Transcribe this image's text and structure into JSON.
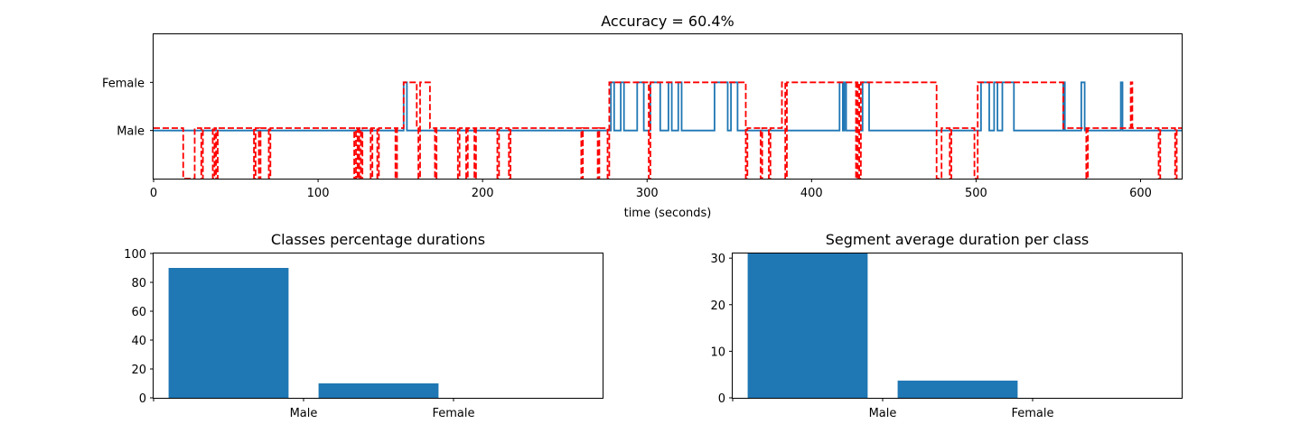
{
  "chart_data": [
    {
      "type": "line",
      "title": "Accuracy = 60.4%",
      "xlabel": "time (seconds)",
      "ylabel": "",
      "xlim": [
        0,
        625
      ],
      "ylim": [
        -1,
        2
      ],
      "x_ticks": [
        0,
        100,
        200,
        300,
        400,
        500,
        600
      ],
      "y_ticks": [
        {
          "value": 0,
          "label": "Male"
        },
        {
          "value": 1,
          "label": "Female"
        }
      ],
      "series": [
        {
          "style": "solid",
          "color": "#1f77b4",
          "segments": [
            [
              0,
              0
            ],
            [
              152,
              0
            ],
            [
              152,
              1
            ],
            [
              154,
              1
            ],
            [
              154,
              0
            ],
            [
              278,
              0
            ],
            [
              278,
              1
            ],
            [
              280,
              1
            ],
            [
              280,
              0
            ],
            [
              284,
              0
            ],
            [
              284,
              1
            ],
            [
              286,
              1
            ],
            [
              286,
              0
            ],
            [
              294,
              0
            ],
            [
              294,
              1
            ],
            [
              298,
              1
            ],
            [
              298,
              0
            ],
            [
              302,
              0
            ],
            [
              302,
              1
            ],
            [
              308,
              1
            ],
            [
              308,
              0
            ],
            [
              313,
              0
            ],
            [
              313,
              1
            ],
            [
              315,
              1
            ],
            [
              315,
              0
            ],
            [
              319,
              0
            ],
            [
              319,
              1
            ],
            [
              321,
              1
            ],
            [
              321,
              0
            ],
            [
              341,
              0
            ],
            [
              341,
              1
            ],
            [
              349,
              1
            ],
            [
              349,
              0
            ],
            [
              351,
              0
            ],
            [
              351,
              1
            ],
            [
              355,
              1
            ],
            [
              355,
              0
            ],
            [
              417,
              0
            ],
            [
              417,
              1
            ],
            [
              419,
              1
            ],
            [
              419,
              0
            ],
            [
              420,
              0
            ],
            [
              420,
              1
            ],
            [
              421,
              1
            ],
            [
              421,
              0
            ],
            [
              431,
              0
            ],
            [
              431,
              1
            ],
            [
              435,
              1
            ],
            [
              435,
              0
            ],
            [
              503,
              0
            ],
            [
              503,
              1
            ],
            [
              508,
              1
            ],
            [
              508,
              0
            ],
            [
              511,
              0
            ],
            [
              511,
              1
            ],
            [
              513,
              1
            ],
            [
              513,
              0
            ],
            [
              516,
              0
            ],
            [
              516,
              1
            ],
            [
              523,
              1
            ],
            [
              523,
              0
            ],
            [
              553,
              0
            ],
            [
              553,
              1
            ],
            [
              554,
              1
            ],
            [
              554,
              0
            ],
            [
              564,
              0
            ],
            [
              564,
              1
            ],
            [
              566,
              1
            ],
            [
              566,
              0
            ],
            [
              588,
              0
            ],
            [
              588,
              1
            ],
            [
              589,
              1
            ],
            [
              589,
              0
            ],
            [
              625,
              0
            ]
          ]
        },
        {
          "style": "dashed",
          "color": "#ff0000",
          "segments": [
            [
              0,
              0.05
            ],
            [
              18,
              0.05
            ],
            [
              18,
              -1
            ],
            [
              25,
              -1
            ],
            [
              25,
              0.05
            ],
            [
              29,
              0.05
            ],
            [
              29,
              -1
            ],
            [
              30,
              -1
            ],
            [
              30,
              0.05
            ],
            [
              36,
              0.05
            ],
            [
              36,
              -1
            ],
            [
              37,
              -1
            ],
            [
              37,
              0.05
            ],
            [
              38,
              0.05
            ],
            [
              38,
              -1
            ],
            [
              39,
              -1
            ],
            [
              39,
              0.05
            ],
            [
              61,
              0.05
            ],
            [
              61,
              -1
            ],
            [
              62,
              -1
            ],
            [
              62,
              0.05
            ],
            [
              64,
              0.05
            ],
            [
              64,
              -1
            ],
            [
              65,
              -1
            ],
            [
              65,
              0.05
            ],
            [
              70,
              0.05
            ],
            [
              70,
              -1
            ],
            [
              71,
              -1
            ],
            [
              71,
              0.05
            ],
            [
              122,
              0.05
            ],
            [
              122,
              -1
            ],
            [
              123,
              -1
            ],
            [
              123,
              0.05
            ],
            [
              124,
              0.05
            ],
            [
              124,
              -1
            ],
            [
              125,
              -1
            ],
            [
              125,
              0.05
            ],
            [
              126,
              0.05
            ],
            [
              126,
              -1
            ],
            [
              127,
              -1
            ],
            [
              127,
              0.05
            ],
            [
              132,
              0.05
            ],
            [
              132,
              -1
            ],
            [
              133,
              -1
            ],
            [
              133,
              0.05
            ],
            [
              136,
              0.05
            ],
            [
              136,
              -1
            ],
            [
              137,
              -1
            ],
            [
              137,
              0.05
            ],
            [
              147,
              0.05
            ],
            [
              147,
              -1
            ],
            [
              148,
              -1
            ],
            [
              148,
              0.05
            ],
            [
              152,
              0.05
            ],
            [
              152,
              1
            ],
            [
              160,
              1
            ],
            [
              160,
              0.05
            ],
            [
              161,
              0.05
            ],
            [
              161,
              -1
            ],
            [
              162,
              -1
            ],
            [
              162,
              1
            ],
            [
              168,
              1
            ],
            [
              168,
              0.05
            ],
            [
              171,
              0.05
            ],
            [
              171,
              -1
            ],
            [
              172,
              -1
            ],
            [
              172,
              0.05
            ],
            [
              185,
              0.05
            ],
            [
              185,
              -1
            ],
            [
              186,
              -1
            ],
            [
              186,
              0.05
            ],
            [
              190,
              0.05
            ],
            [
              190,
              -1
            ],
            [
              191,
              -1
            ],
            [
              191,
              0.05
            ],
            [
              195,
              0.05
            ],
            [
              195,
              -1
            ],
            [
              196,
              -1
            ],
            [
              196,
              0.05
            ],
            [
              209,
              0.05
            ],
            [
              209,
              -1
            ],
            [
              210,
              -1
            ],
            [
              210,
              0.05
            ],
            [
              216,
              0.05
            ],
            [
              216,
              -1
            ],
            [
              217,
              -1
            ],
            [
              217,
              0.05
            ],
            [
              260,
              0.05
            ],
            [
              260,
              -1
            ],
            [
              261,
              -1
            ],
            [
              261,
              0.05
            ],
            [
              270,
              0.05
            ],
            [
              270,
              -1
            ],
            [
              271,
              -1
            ],
            [
              271,
              0.05
            ],
            [
              276,
              0.05
            ],
            [
              276,
              -1
            ],
            [
              277,
              -1
            ],
            [
              277,
              1
            ],
            [
              301,
              1
            ],
            [
              301,
              -1
            ],
            [
              302,
              -1
            ],
            [
              302,
              1
            ],
            [
              360,
              1
            ],
            [
              360,
              -1
            ],
            [
              361,
              -1
            ],
            [
              361,
              0.05
            ],
            [
              369,
              0.05
            ],
            [
              369,
              -1
            ],
            [
              370,
              -1
            ],
            [
              370,
              0.05
            ],
            [
              374,
              0.05
            ],
            [
              374,
              -1
            ],
            [
              375,
              -1
            ],
            [
              375,
              0.05
            ],
            [
              382,
              0.05
            ],
            [
              382,
              1
            ],
            [
              384,
              1
            ],
            [
              384,
              -1
            ],
            [
              385,
              -1
            ],
            [
              385,
              1
            ],
            [
              427,
              1
            ],
            [
              427,
              -1
            ],
            [
              428,
              -1
            ],
            [
              428,
              1
            ],
            [
              429,
              1
            ],
            [
              429,
              -1
            ],
            [
              430,
              -1
            ],
            [
              430,
              1
            ],
            [
              476,
              1
            ],
            [
              476,
              -1
            ],
            [
              479,
              -1
            ],
            [
              479,
              0.05
            ],
            [
              484,
              0.05
            ],
            [
              484,
              -1
            ],
            [
              485,
              -1
            ],
            [
              485,
              0.05
            ],
            [
              499,
              0.05
            ],
            [
              499,
              -1
            ],
            [
              501,
              -1
            ],
            [
              501,
              1
            ],
            [
              553,
              1
            ],
            [
              553,
              0.05
            ],
            [
              567,
              0.05
            ],
            [
              567,
              -1
            ],
            [
              568,
              -1
            ],
            [
              568,
              0.05
            ],
            [
              594,
              0.05
            ],
            [
              594,
              1
            ],
            [
              595,
              1
            ],
            [
              595,
              0.05
            ],
            [
              611,
              0.05
            ],
            [
              611,
              -1
            ],
            [
              612,
              -1
            ],
            [
              612,
              0.05
            ],
            [
              621,
              0.05
            ],
            [
              621,
              -1
            ],
            [
              622,
              -1
            ],
            [
              622,
              0.05
            ],
            [
              625,
              0.05
            ]
          ]
        }
      ]
    },
    {
      "type": "bar",
      "title": "Classes percentage durations",
      "categories": [
        "Male",
        "Female"
      ],
      "values": [
        90,
        10
      ],
      "ylim": [
        0,
        100
      ],
      "y_ticks": [
        0,
        20,
        40,
        60,
        80,
        100
      ],
      "color": "#1f77b4"
    },
    {
      "type": "bar",
      "title": "Segment average duration per class",
      "categories": [
        "Male",
        "Female"
      ],
      "values": [
        31,
        3.7
      ],
      "ylim": [
        0,
        31
      ],
      "y_ticks": [
        0,
        10,
        20,
        30
      ],
      "color": "#1f77b4"
    }
  ]
}
